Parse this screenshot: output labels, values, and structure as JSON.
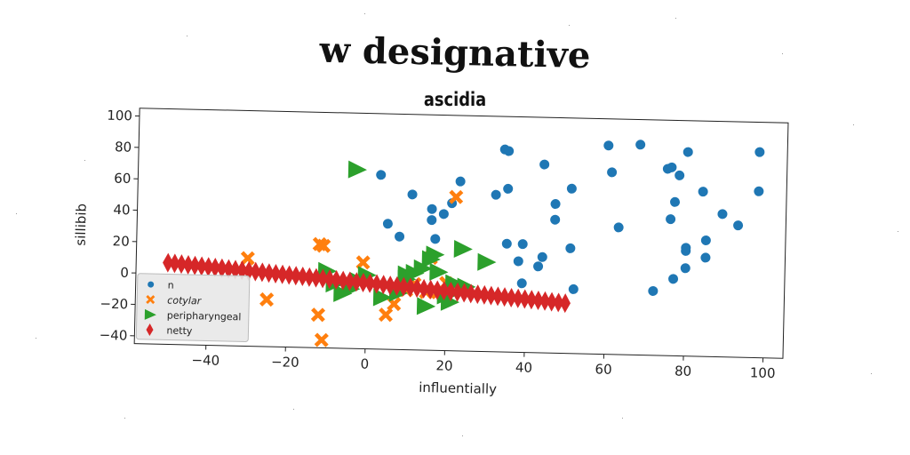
{
  "chart_data": {
    "type": "scatter",
    "title": "w designative",
    "subtitle": "ascidia",
    "xlabel": "influentially",
    "ylabel": "sillibib",
    "xlim": [
      -58,
      105
    ],
    "ylim": [
      -45,
      105
    ],
    "xticks": [
      "−40",
      "−20",
      "0",
      "20",
      "40",
      "60",
      "80",
      "100"
    ],
    "xtick_values": [
      -40,
      -20,
      0,
      20,
      40,
      60,
      80,
      100
    ],
    "yticks": [
      "−40",
      "−20",
      "0",
      "20",
      "40",
      "60",
      "80",
      "100"
    ],
    "ytick_values": [
      -40,
      -20,
      0,
      20,
      40,
      60,
      80,
      100
    ],
    "legend_position": "lower-left",
    "series": [
      {
        "name": "n",
        "marker": "circle",
        "color": "#1f77b4",
        "points": [
          [
            3,
            66
          ],
          [
            5,
            35
          ],
          [
            8,
            27
          ],
          [
            11,
            54
          ],
          [
            16,
            45
          ],
          [
            16,
            38
          ],
          [
            17,
            26
          ],
          [
            19,
            42
          ],
          [
            21,
            49
          ],
          [
            23,
            63
          ],
          [
            32,
            55
          ],
          [
            34,
            84
          ],
          [
            35,
            83
          ],
          [
            35,
            24
          ],
          [
            35,
            59
          ],
          [
            38,
            13
          ],
          [
            39,
            -1
          ],
          [
            39,
            24
          ],
          [
            43,
            10
          ],
          [
            44,
            16
          ],
          [
            44,
            75
          ],
          [
            47,
            50
          ],
          [
            47,
            40
          ],
          [
            51,
            60
          ],
          [
            51,
            22
          ],
          [
            52,
            -4
          ],
          [
            60,
            88
          ],
          [
            61,
            71
          ],
          [
            63,
            36
          ],
          [
            68,
            89
          ],
          [
            72,
            -4
          ],
          [
            75,
            74
          ],
          [
            76,
            75
          ],
          [
            76,
            42
          ],
          [
            77,
            53
          ],
          [
            77,
            4
          ],
          [
            78,
            70
          ],
          [
            80,
            85
          ],
          [
            80,
            22
          ],
          [
            80,
            24
          ],
          [
            80,
            11
          ],
          [
            84,
            60
          ],
          [
            85,
            29
          ],
          [
            85,
            18
          ],
          [
            89,
            46
          ],
          [
            93,
            39
          ],
          [
            98,
            86
          ],
          [
            98,
            61
          ]
        ]
      },
      {
        "name": "cotylar",
        "marker": "x",
        "color": "#ff7f0e",
        "points": [
          [
            -30,
            11
          ],
          [
            -25,
            -15
          ],
          [
            -12,
            21
          ],
          [
            -11,
            20
          ],
          [
            -12,
            -24
          ],
          [
            -11,
            -40
          ],
          [
            -1,
            10
          ],
          [
            5,
            -23
          ],
          [
            7,
            -16
          ],
          [
            10,
            -7
          ],
          [
            16,
            14
          ],
          [
            18,
            -8
          ],
          [
            20,
            -2
          ],
          [
            22,
            53
          ],
          [
            15,
            -8
          ],
          [
            12,
            -3
          ]
        ]
      },
      {
        "name": "peripharyngeal",
        "marker": "triangle-right",
        "color": "#2ca02c",
        "points": [
          [
            -10,
            4
          ],
          [
            -8,
            -4
          ],
          [
            -6,
            -10
          ],
          [
            -4,
            -7
          ],
          [
            -2,
            -2
          ],
          [
            0,
            2
          ],
          [
            -3,
            69
          ],
          [
            4,
            -12
          ],
          [
            8,
            -9
          ],
          [
            10,
            0
          ],
          [
            10,
            3
          ],
          [
            12,
            4
          ],
          [
            14,
            7
          ],
          [
            15,
            -17
          ],
          [
            16,
            13
          ],
          [
            17,
            16
          ],
          [
            18,
            5
          ],
          [
            20,
            -10
          ],
          [
            21,
            -14
          ],
          [
            22,
            -2
          ],
          [
            24,
            20
          ],
          [
            25,
            -4
          ],
          [
            30,
            12
          ]
        ]
      },
      {
        "name": "netty",
        "marker": "thin-diamond",
        "color": "#d62728",
        "line": {
          "x0": -50,
          "y0": 7,
          "x1": 50,
          "y1": -13,
          "count": 60
        }
      }
    ]
  }
}
